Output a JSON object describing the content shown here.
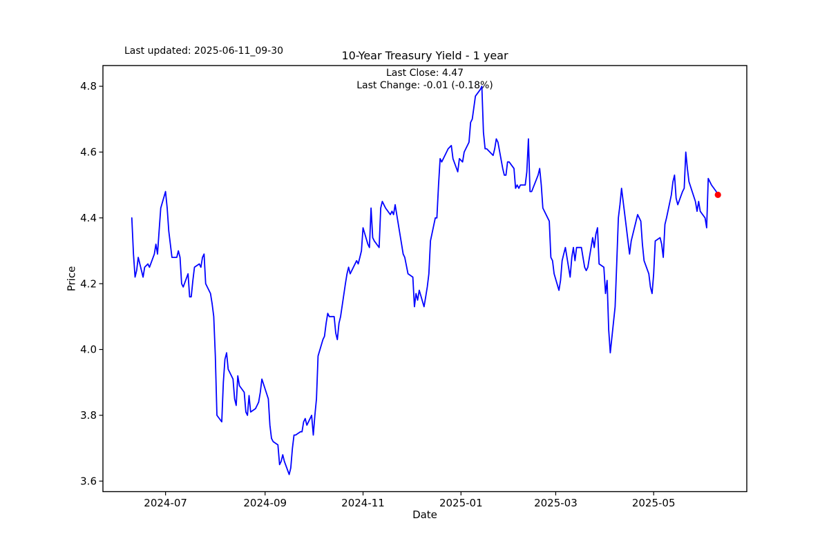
{
  "figure": {
    "last_updated": "Last updated: 2025-06-11_09-30",
    "title": "10-Year Treasury Yield - 1 year",
    "subtitle_last_close": "Last Close: 4.47",
    "subtitle_last_change": "Last Change: -0.01 (-0.18%)"
  },
  "chart_data": {
    "type": "line",
    "title": "10-Year Treasury Yield - 1 year",
    "xlabel": "Date",
    "ylabel": "Price",
    "grid": false,
    "legend": "none",
    "last_close": 4.47,
    "last_change": -0.01,
    "last_change_pct": -0.18,
    "line_color": "#0000ff",
    "marker_color": "#ff0000",
    "xlim": [
      "2024-05-23",
      "2025-06-28"
    ],
    "ylim": [
      3.568,
      4.863
    ],
    "x_ticks": [
      {
        "label": "2024-07",
        "date": "2024-07-01"
      },
      {
        "label": "2024-09",
        "date": "2024-09-01"
      },
      {
        "label": "2024-11",
        "date": "2024-11-01"
      },
      {
        "label": "2025-01",
        "date": "2025-01-01"
      },
      {
        "label": "2025-03",
        "date": "2025-03-01"
      },
      {
        "label": "2025-05",
        "date": "2025-05-01"
      }
    ],
    "y_ticks": [
      {
        "label": "3.6",
        "value": 3.6
      },
      {
        "label": "3.8",
        "value": 3.8
      },
      {
        "label": "4.0",
        "value": 4.0
      },
      {
        "label": "4.2",
        "value": 4.2
      },
      {
        "label": "4.4",
        "value": 4.4
      },
      {
        "label": "4.6",
        "value": 4.6
      },
      {
        "label": "4.8",
        "value": 4.8
      }
    ],
    "series": [
      {
        "dates": [
          "2024-06-10",
          "2024-06-11",
          "2024-06-12",
          "2024-06-13",
          "2024-06-14",
          "2024-06-17",
          "2024-06-18",
          "2024-06-20",
          "2024-06-21",
          "2024-06-24",
          "2024-06-25",
          "2024-06-26",
          "2024-06-27",
          "2024-06-28",
          "2024-07-01",
          "2024-07-02",
          "2024-07-03",
          "2024-07-05",
          "2024-07-08",
          "2024-07-09",
          "2024-07-10",
          "2024-07-11",
          "2024-07-12",
          "2024-07-15",
          "2024-07-16",
          "2024-07-17",
          "2024-07-18",
          "2024-07-19",
          "2024-07-22",
          "2024-07-23",
          "2024-07-24",
          "2024-07-25",
          "2024-07-26",
          "2024-07-29",
          "2024-07-30",
          "2024-07-31",
          "2024-08-01",
          "2024-08-02",
          "2024-08-05",
          "2024-08-06",
          "2024-08-07",
          "2024-08-08",
          "2024-08-09",
          "2024-08-12",
          "2024-08-13",
          "2024-08-14",
          "2024-08-15",
          "2024-08-16",
          "2024-08-19",
          "2024-08-20",
          "2024-08-21",
          "2024-08-22",
          "2024-08-23",
          "2024-08-26",
          "2024-08-27",
          "2024-08-28",
          "2024-08-29",
          "2024-08-30",
          "2024-09-03",
          "2024-09-04",
          "2024-09-05",
          "2024-09-06",
          "2024-09-09",
          "2024-09-10",
          "2024-09-11",
          "2024-09-12",
          "2024-09-13",
          "2024-09-16",
          "2024-09-17",
          "2024-09-18",
          "2024-09-19",
          "2024-09-20",
          "2024-09-23",
          "2024-09-24",
          "2024-09-25",
          "2024-09-26",
          "2024-09-27",
          "2024-09-30",
          "2024-10-01",
          "2024-10-02",
          "2024-10-03",
          "2024-10-04",
          "2024-10-07",
          "2024-10-08",
          "2024-10-09",
          "2024-10-10",
          "2024-10-11",
          "2024-10-14",
          "2024-10-15",
          "2024-10-16",
          "2024-10-17",
          "2024-10-18",
          "2024-10-21",
          "2024-10-22",
          "2024-10-23",
          "2024-10-24",
          "2024-10-25",
          "2024-10-28",
          "2024-10-29",
          "2024-10-30",
          "2024-10-31",
          "2024-11-01",
          "2024-11-04",
          "2024-11-05",
          "2024-11-06",
          "2024-11-07",
          "2024-11-08",
          "2024-11-11",
          "2024-11-12",
          "2024-11-13",
          "2024-11-14",
          "2024-11-15",
          "2024-11-18",
          "2024-11-19",
          "2024-11-20",
          "2024-11-21",
          "2024-11-22",
          "2024-11-25",
          "2024-11-26",
          "2024-11-27",
          "2024-11-29",
          "2024-12-02",
          "2024-12-03",
          "2024-12-04",
          "2024-12-05",
          "2024-12-06",
          "2024-12-09",
          "2024-12-10",
          "2024-12-11",
          "2024-12-12",
          "2024-12-13",
          "2024-12-16",
          "2024-12-17",
          "2024-12-18",
          "2024-12-19",
          "2024-12-20",
          "2024-12-23",
          "2024-12-24",
          "2024-12-26",
          "2024-12-27",
          "2024-12-30",
          "2024-12-31",
          "2025-01-02",
          "2025-01-03",
          "2025-01-06",
          "2025-01-07",
          "2025-01-08",
          "2025-01-10",
          "2025-01-13",
          "2025-01-14",
          "2025-01-15",
          "2025-01-16",
          "2025-01-17",
          "2025-01-21",
          "2025-01-22",
          "2025-01-23",
          "2025-01-24",
          "2025-01-27",
          "2025-01-28",
          "2025-01-29",
          "2025-01-30",
          "2025-01-31",
          "2025-02-03",
          "2025-02-04",
          "2025-02-05",
          "2025-02-06",
          "2025-02-07",
          "2025-02-10",
          "2025-02-11",
          "2025-02-12",
          "2025-02-13",
          "2025-02-14",
          "2025-02-18",
          "2025-02-19",
          "2025-02-20",
          "2025-02-21",
          "2025-02-24",
          "2025-02-25",
          "2025-02-26",
          "2025-02-27",
          "2025-02-28",
          "2025-03-03",
          "2025-03-04",
          "2025-03-05",
          "2025-03-06",
          "2025-03-07",
          "2025-03-10",
          "2025-03-11",
          "2025-03-12",
          "2025-03-13",
          "2025-03-14",
          "2025-03-17",
          "2025-03-18",
          "2025-03-19",
          "2025-03-20",
          "2025-03-21",
          "2025-03-24",
          "2025-03-25",
          "2025-03-26",
          "2025-03-27",
          "2025-03-28",
          "2025-03-31",
          "2025-04-01",
          "2025-04-02",
          "2025-04-03",
          "2025-04-04",
          "2025-04-07",
          "2025-04-08",
          "2025-04-09",
          "2025-04-10",
          "2025-04-11",
          "2025-04-14",
          "2025-04-15",
          "2025-04-16",
          "2025-04-17",
          "2025-04-21",
          "2025-04-22",
          "2025-04-23",
          "2025-04-24",
          "2025-04-25",
          "2025-04-28",
          "2025-04-29",
          "2025-04-30",
          "2025-05-01",
          "2025-05-02",
          "2025-05-05",
          "2025-05-06",
          "2025-05-07",
          "2025-05-08",
          "2025-05-09",
          "2025-05-12",
          "2025-05-13",
          "2025-05-14",
          "2025-05-15",
          "2025-05-16",
          "2025-05-19",
          "2025-05-20",
          "2025-05-21",
          "2025-05-22",
          "2025-05-23",
          "2025-05-27",
          "2025-05-28",
          "2025-05-29",
          "2025-05-30",
          "2025-06-02",
          "2025-06-03",
          "2025-06-04",
          "2025-06-05",
          "2025-06-06",
          "2025-06-09",
          "2025-06-10"
        ],
        "values": [
          4.4,
          4.29,
          4.22,
          4.24,
          4.28,
          4.22,
          4.25,
          4.26,
          4.25,
          4.29,
          4.32,
          4.29,
          4.36,
          4.43,
          4.48,
          4.43,
          4.36,
          4.28,
          4.28,
          4.3,
          4.28,
          4.2,
          4.19,
          4.23,
          4.16,
          4.16,
          4.21,
          4.25,
          4.26,
          4.25,
          4.28,
          4.29,
          4.2,
          4.17,
          4.14,
          4.1,
          3.98,
          3.8,
          3.78,
          3.9,
          3.97,
          3.99,
          3.94,
          3.91,
          3.85,
          3.83,
          3.92,
          3.89,
          3.87,
          3.81,
          3.8,
          3.86,
          3.81,
          3.82,
          3.83,
          3.84,
          3.87,
          3.91,
          3.85,
          3.77,
          3.73,
          3.72,
          3.71,
          3.65,
          3.66,
          3.68,
          3.66,
          3.62,
          3.64,
          3.7,
          3.74,
          3.74,
          3.75,
          3.75,
          3.78,
          3.79,
          3.77,
          3.8,
          3.74,
          3.8,
          3.85,
          3.98,
          4.03,
          4.04,
          4.08,
          4.11,
          4.1,
          4.1,
          4.05,
          4.03,
          4.08,
          4.1,
          4.2,
          4.23,
          4.25,
          4.23,
          4.24,
          4.27,
          4.26,
          4.28,
          4.3,
          4.37,
          4.32,
          4.31,
          4.43,
          4.34,
          4.33,
          4.31,
          4.43,
          4.45,
          4.44,
          4.43,
          4.41,
          4.42,
          4.41,
          4.44,
          4.41,
          4.32,
          4.29,
          4.28,
          4.23,
          4.22,
          4.13,
          4.17,
          4.15,
          4.18,
          4.13,
          4.16,
          4.19,
          4.23,
          4.33,
          4.4,
          4.4,
          4.5,
          4.58,
          4.57,
          4.6,
          4.61,
          4.62,
          4.58,
          4.54,
          4.58,
          4.57,
          4.6,
          4.63,
          4.69,
          4.7,
          4.77,
          4.79,
          4.8,
          4.66,
          4.61,
          4.61,
          4.59,
          4.61,
          4.64,
          4.63,
          4.55,
          4.53,
          4.53,
          4.57,
          4.57,
          4.55,
          4.49,
          4.5,
          4.49,
          4.5,
          4.5,
          4.54,
          4.64,
          4.48,
          4.48,
          4.53,
          4.55,
          4.5,
          4.43,
          4.4,
          4.39,
          4.28,
          4.27,
          4.23,
          4.18,
          4.21,
          4.27,
          4.29,
          4.31,
          4.22,
          4.28,
          4.31,
          4.27,
          4.31,
          4.31,
          4.28,
          4.25,
          4.24,
          4.25,
          4.34,
          4.31,
          4.35,
          4.37,
          4.26,
          4.25,
          4.17,
          4.21,
          4.06,
          3.99,
          4.13,
          4.26,
          4.4,
          4.44,
          4.49,
          4.37,
          4.33,
          4.29,
          4.33,
          4.41,
          4.4,
          4.39,
          4.32,
          4.27,
          4.23,
          4.19,
          4.17,
          4.23,
          4.33,
          4.34,
          4.32,
          4.28,
          4.38,
          4.4,
          4.47,
          4.51,
          4.53,
          4.46,
          4.44,
          4.48,
          4.49,
          4.6,
          4.55,
          4.51,
          4.45,
          4.42,
          4.45,
          4.42,
          4.4,
          4.37,
          4.52,
          4.51,
          4.5,
          4.48,
          4.47
        ]
      }
    ]
  }
}
